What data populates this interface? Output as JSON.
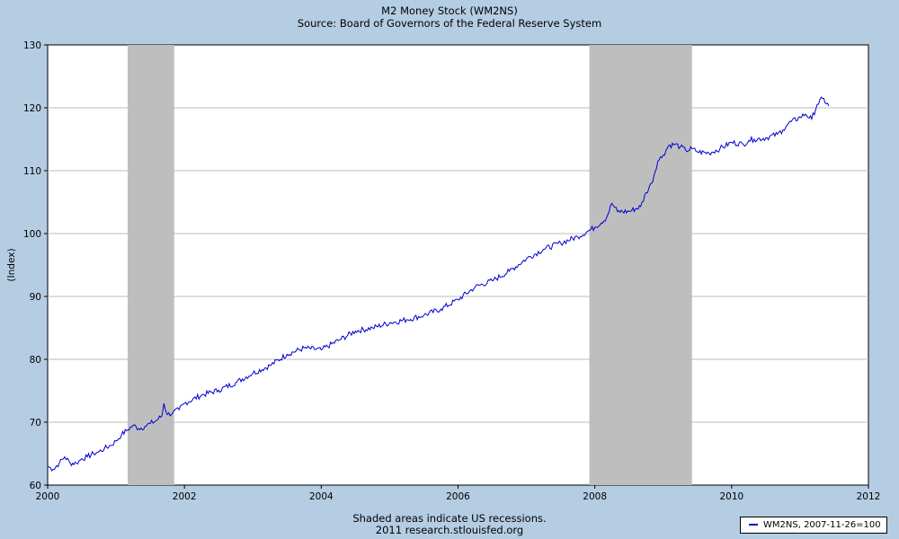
{
  "chart_data": {
    "type": "line",
    "title": "M2 Money Stock (WM2NS)",
    "subtitle": "Source: Board of Governors of the Federal Reserve System",
    "ylabel": "(Index)",
    "xlabel": "",
    "xlim": [
      2000,
      2012
    ],
    "ylim": [
      60,
      130
    ],
    "x_ticks": [
      "2000",
      "2002",
      "2004",
      "2006",
      "2008",
      "2010",
      "2012"
    ],
    "y_ticks": [
      "60",
      "70",
      "80",
      "90",
      "100",
      "110",
      "120",
      "130"
    ],
    "grid": "horizontal",
    "legend_position": "bottom-right",
    "line_color": "#0000cc",
    "recession_color": "#bebebe",
    "recessions": [
      {
        "start": 2001.17,
        "end": 2001.85
      },
      {
        "start": 2007.92,
        "end": 2009.42
      }
    ],
    "series": [
      {
        "name": "WM2NS, 2007-11-26=100",
        "x": [
          2000.0,
          2000.08,
          2000.17,
          2000.25,
          2000.33,
          2000.42,
          2000.5,
          2000.58,
          2000.67,
          2000.75,
          2000.83,
          2000.92,
          2001.0,
          2001.08,
          2001.17,
          2001.25,
          2001.33,
          2001.42,
          2001.5,
          2001.58,
          2001.67,
          2001.7,
          2001.75,
          2001.83,
          2001.92,
          2002.0,
          2002.25,
          2002.5,
          2002.75,
          2003.0,
          2003.25,
          2003.5,
          2003.75,
          2004.0,
          2004.25,
          2004.5,
          2004.75,
          2005.0,
          2005.25,
          2005.5,
          2005.75,
          2006.0,
          2006.25,
          2006.5,
          2006.75,
          2007.0,
          2007.25,
          2007.5,
          2007.75,
          2007.92,
          2008.0,
          2008.17,
          2008.25,
          2008.33,
          2008.5,
          2008.67,
          2008.75,
          2008.83,
          2008.92,
          2009.0,
          2009.08,
          2009.17,
          2009.25,
          2009.33,
          2009.42,
          2009.5,
          2009.67,
          2009.83,
          2010.0,
          2010.17,
          2010.25,
          2010.33,
          2010.5,
          2010.67,
          2010.75,
          2010.83,
          2011.0,
          2011.08,
          2011.17,
          2011.25,
          2011.33,
          2011.42
        ],
        "values": [
          63.0,
          62.5,
          63.5,
          64.5,
          63.5,
          63.5,
          64.2,
          64.5,
          65.0,
          65.3,
          65.8,
          66.3,
          67.0,
          68.0,
          68.8,
          69.5,
          69.0,
          69.3,
          69.8,
          70.2,
          71.0,
          73.0,
          71.2,
          71.5,
          72.0,
          73.0,
          74.3,
          75.1,
          76.3,
          77.8,
          79.0,
          80.8,
          81.8,
          81.5,
          83.0,
          84.5,
          85.0,
          85.8,
          86.3,
          87.0,
          88.0,
          89.5,
          91.5,
          92.5,
          94.0,
          96.0,
          97.5,
          98.5,
          99.5,
          100.5,
          101.0,
          102.5,
          104.8,
          103.5,
          103.5,
          104.3,
          106.5,
          108.0,
          111.5,
          112.5,
          114.0,
          114.2,
          113.8,
          113.2,
          113.5,
          113.0,
          112.8,
          113.5,
          114.5,
          114.2,
          114.8,
          115.0,
          115.2,
          115.8,
          116.5,
          117.5,
          118.5,
          119.0,
          118.2,
          120.5,
          121.5,
          120.3
        ]
      }
    ]
  },
  "footnote": {
    "line1": "Shaded areas indicate US recessions.",
    "line2": "2011 research.stlouisfed.org"
  }
}
